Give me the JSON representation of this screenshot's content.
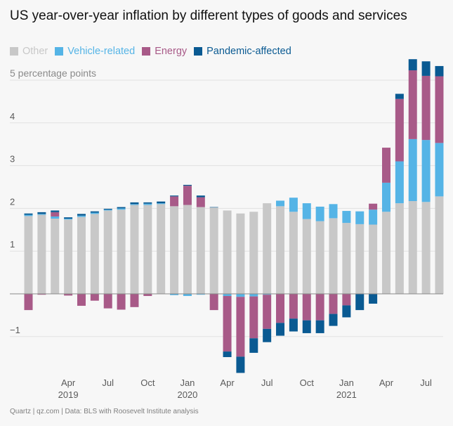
{
  "chart_data": {
    "type": "bar",
    "stacked": true,
    "title": "US year-over-year inflation by different types of goods and services",
    "ylabel": "5 percentage points",
    "ylim": [
      -1.8,
      5.6
    ],
    "y_ticks": [
      {
        "value": 5,
        "label": "5 percentage points"
      },
      {
        "value": 4,
        "label": "4"
      },
      {
        "value": 3,
        "label": "3"
      },
      {
        "value": 2,
        "label": "2"
      },
      {
        "value": 1,
        "label": "1"
      },
      {
        "value": 0,
        "label": ""
      },
      {
        "value": -1,
        "label": "−1"
      }
    ],
    "categories": [
      "Jan 2019",
      "Feb 2019",
      "Mar 2019",
      "Apr 2019",
      "May 2019",
      "Jun 2019",
      "Jul 2019",
      "Aug 2019",
      "Sep 2019",
      "Oct 2019",
      "Nov 2019",
      "Dec 2019",
      "Jan 2020",
      "Feb 2020",
      "Mar 2020",
      "Apr 2020",
      "May 2020",
      "Jun 2020",
      "Jul 2020",
      "Aug 2020",
      "Sep 2020",
      "Oct 2020",
      "Nov 2020",
      "Dec 2020",
      "Jan 2021",
      "Feb 2021",
      "Mar 2021",
      "Apr 2021",
      "May 2021",
      "Jun 2021",
      "Jul 2021",
      "Aug 2021"
    ],
    "x_tick_labels": [
      {
        "index": 3,
        "label": "Apr",
        "year": "2019"
      },
      {
        "index": 6,
        "label": "Jul",
        "year": ""
      },
      {
        "index": 9,
        "label": "Oct",
        "year": ""
      },
      {
        "index": 12,
        "label": "Jan",
        "year": "2020"
      },
      {
        "index": 15,
        "label": "Apr",
        "year": ""
      },
      {
        "index": 18,
        "label": "Jul",
        "year": ""
      },
      {
        "index": 21,
        "label": "Oct",
        "year": ""
      },
      {
        "index": 24,
        "label": "Jan",
        "year": "2021"
      },
      {
        "index": 27,
        "label": "Apr",
        "year": ""
      },
      {
        "index": 30,
        "label": "Jul",
        "year": ""
      }
    ],
    "series": [
      {
        "name": "Other",
        "color": "#c8c8c8",
        "values": [
          1.82,
          1.85,
          1.76,
          1.74,
          1.8,
          1.87,
          1.95,
          1.97,
          2.08,
          2.08,
          2.1,
          2.05,
          2.08,
          2.03,
          2.02,
          1.95,
          1.88,
          1.92,
          2.12,
          2.05,
          1.92,
          1.75,
          1.7,
          1.77,
          1.66,
          1.63,
          1.62,
          1.92,
          2.12,
          2.17,
          2.15,
          2.28
        ]
      },
      {
        "name": "Vehicle-related",
        "color": "#55b4e6",
        "values": [
          0.03,
          0.02,
          0.05,
          0.02,
          0.03,
          0.03,
          0.02,
          0.03,
          0.02,
          0.03,
          0.02,
          -0.03,
          -0.05,
          -0.02,
          0.0,
          -0.05,
          -0.07,
          -0.06,
          -0.02,
          0.13,
          0.33,
          0.37,
          0.34,
          0.33,
          0.28,
          0.3,
          0.35,
          0.68,
          0.98,
          1.45,
          1.45,
          1.25
        ]
      },
      {
        "name": "Energy",
        "color": "#a85a88",
        "values": [
          -0.38,
          -0.02,
          0.1,
          -0.04,
          -0.28,
          -0.16,
          -0.34,
          -0.37,
          -0.31,
          -0.05,
          0.0,
          0.23,
          0.45,
          0.23,
          -0.38,
          -1.3,
          -1.4,
          -0.98,
          -0.8,
          -0.68,
          -0.58,
          -0.62,
          -0.62,
          -0.47,
          -0.27,
          0.0,
          0.14,
          0.82,
          1.46,
          1.61,
          1.5,
          1.56
        ]
      },
      {
        "name": "Pandemic-affected",
        "color": "#0a5a92",
        "values": [
          0.03,
          0.04,
          0.04,
          0.03,
          0.04,
          0.03,
          0.02,
          0.03,
          0.04,
          0.03,
          0.04,
          0.02,
          0.02,
          0.04,
          0.01,
          -0.13,
          -0.38,
          -0.34,
          -0.31,
          -0.3,
          -0.3,
          -0.3,
          -0.3,
          -0.28,
          -0.28,
          -0.38,
          -0.23,
          0.0,
          0.12,
          0.26,
          0.34,
          0.24
        ]
      }
    ]
  },
  "footer": "Quartz | qz.com | Data: BLS with Roosevelt Institute analysis"
}
